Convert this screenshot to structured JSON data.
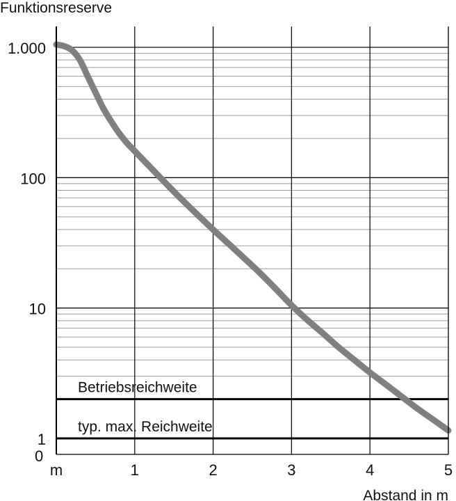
{
  "chart_data": {
    "type": "line",
    "title": "",
    "ylabel": "Funktionsreserve",
    "xlabel": "Abstand in m",
    "x_ticks": [
      {
        "value": 0,
        "label": "m"
      },
      {
        "value": 1,
        "label": "1"
      },
      {
        "value": 2,
        "label": "2"
      },
      {
        "value": 3,
        "label": "3"
      },
      {
        "value": 4,
        "label": "4"
      },
      {
        "value": 5,
        "label": "5"
      }
    ],
    "y_ticks": [
      {
        "value": 1000,
        "label": "1.000"
      },
      {
        "value": 100,
        "label": "100"
      },
      {
        "value": 10,
        "label": "10"
      },
      {
        "value": 1,
        "label": "1"
      }
    ],
    "y_extra_label": "0",
    "y_scale": "log",
    "xlim": [
      0,
      5
    ],
    "ylim": [
      0.8,
      2000
    ],
    "grid": true,
    "series": [
      {
        "color": "#808080",
        "points": [
          [
            0.0,
            1050
          ],
          [
            0.1,
            1020
          ],
          [
            0.2,
            950
          ],
          [
            0.3,
            800
          ],
          [
            0.4,
            600
          ],
          [
            0.5,
            450
          ],
          [
            0.6,
            340
          ],
          [
            0.7,
            270
          ],
          [
            0.8,
            220
          ],
          [
            0.9,
            185
          ],
          [
            1.0,
            160
          ],
          [
            1.2,
            120
          ],
          [
            1.4,
            90
          ],
          [
            1.6,
            68
          ],
          [
            1.8,
            52
          ],
          [
            2.0,
            40
          ],
          [
            2.2,
            31
          ],
          [
            2.4,
            24
          ],
          [
            2.6,
            18.5
          ],
          [
            2.8,
            14
          ],
          [
            3.0,
            10.5
          ],
          [
            3.2,
            8.1
          ],
          [
            3.4,
            6.4
          ],
          [
            3.6,
            5.0
          ],
          [
            3.8,
            4.0
          ],
          [
            4.0,
            3.2
          ],
          [
            4.2,
            2.6
          ],
          [
            4.4,
            2.1
          ],
          [
            4.6,
            1.7
          ],
          [
            4.8,
            1.4
          ],
          [
            5.0,
            1.15
          ]
        ]
      }
    ],
    "reference_lines": [
      {
        "label": "Betriebsreichweite",
        "y": 2
      },
      {
        "label": "typ. max. Reichweite",
        "y": 1
      }
    ]
  }
}
